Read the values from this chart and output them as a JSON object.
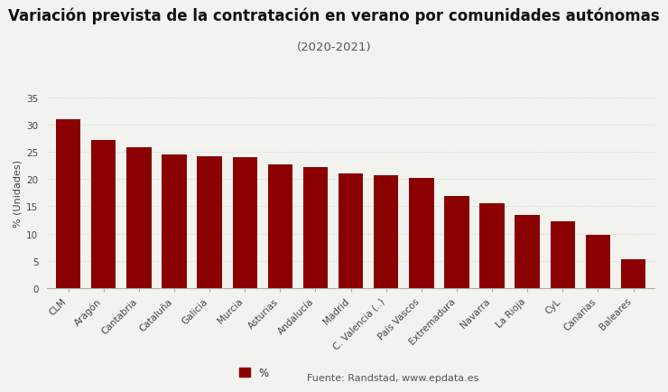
{
  "title": "Variación prevista de la contratación en verano por comunidades autónomas",
  "subtitle": "(2020-2021)",
  "ylabel": "% (Unidades)",
  "categories": [
    "CLM",
    "Aragón",
    "Cantabria",
    "Cataluña",
    "Galicia",
    "Murcia",
    "Asturias",
    "Andalucía",
    "Madrid",
    "C. Valencia (..)",
    "País Vascos",
    "Extremadura",
    "Navarra",
    "La Rioja",
    "CyL",
    "Canarias",
    "Baleares"
  ],
  "values": [
    31.0,
    27.2,
    25.8,
    24.6,
    24.2,
    24.0,
    22.7,
    22.2,
    21.0,
    20.7,
    20.3,
    16.9,
    15.5,
    13.5,
    12.2,
    9.7,
    5.3
  ],
  "bar_color": "#8B0000",
  "background_color": "#f2f2ee",
  "ylim": [
    0,
    35
  ],
  "yticks": [
    0,
    5,
    10,
    15,
    20,
    25,
    30,
    35
  ],
  "grid_color": "#cccccc",
  "legend_label": "%",
  "source_text": "Fuente: Randstad, www.epdata.es",
  "title_fontsize": 12,
  "subtitle_fontsize": 9.5,
  "ylabel_fontsize": 8,
  "tick_fontsize": 7.5,
  "legend_fontsize": 8.5
}
